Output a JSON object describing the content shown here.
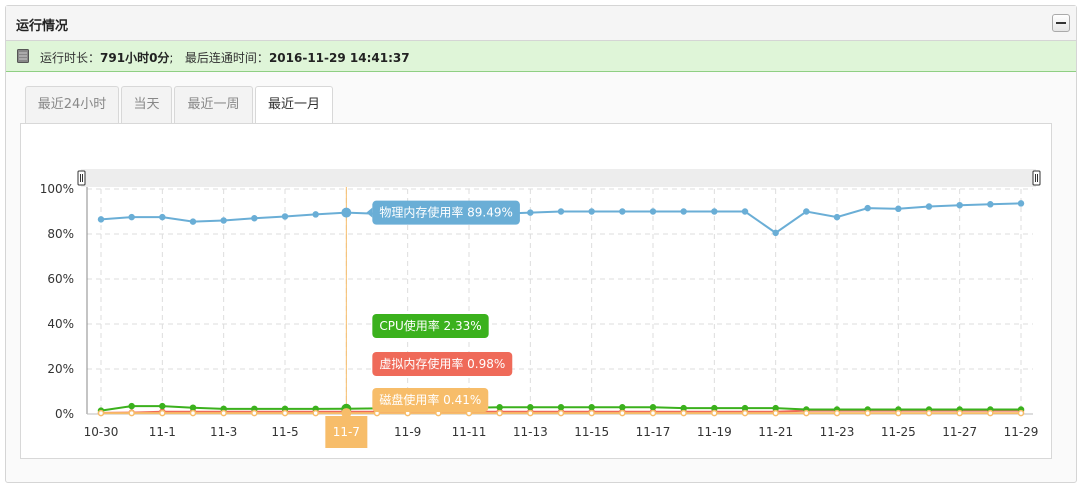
{
  "panel": {
    "title": "运行情况"
  },
  "status": {
    "uptime_label": "运行时长：",
    "uptime_value": "791小时0分",
    "separator": ";",
    "last_connect_label": "最后连通时间：",
    "last_connect_value": "2016-11-29 14:41:37"
  },
  "tabs": [
    {
      "label": "最近24小时",
      "active": false
    },
    {
      "label": "当天",
      "active": false
    },
    {
      "label": "最近一周",
      "active": false
    },
    {
      "label": "最近一月",
      "active": true
    }
  ],
  "colors": {
    "memory": "#6aaed6",
    "cpu": "#3bb11d",
    "virtual": "#ef6a59",
    "disk": "#f7bd6a",
    "crosshair": "#f7bd6a"
  },
  "chart_data": {
    "type": "line",
    "x": [
      "10-30",
      "10-31",
      "11-1",
      "11-2",
      "11-3",
      "11-4",
      "11-5",
      "11-6",
      "11-7",
      "11-8",
      "11-9",
      "11-10",
      "11-11",
      "11-12",
      "11-13",
      "11-14",
      "11-15",
      "11-16",
      "11-17",
      "11-18",
      "11-19",
      "11-20",
      "11-21",
      "11-22",
      "11-23",
      "11-24",
      "11-25",
      "11-26",
      "11-27",
      "11-28",
      "11-29"
    ],
    "x_tick_labels": [
      "10-30",
      "11-1",
      "11-3",
      "11-5",
      "11-7",
      "11-9",
      "11-11",
      "11-13",
      "11-15",
      "11-17",
      "11-19",
      "11-21",
      "11-23",
      "11-25",
      "11-27",
      "11-29"
    ],
    "y_tick_labels": [
      "0%",
      "20%",
      "40%",
      "60%",
      "80%",
      "100%"
    ],
    "ylim": [
      0,
      100
    ],
    "grid": true,
    "series": [
      {
        "name": "物理内存使用率",
        "key": "memory",
        "values": [
          86.5,
          87.5,
          87.5,
          85.5,
          86,
          87,
          87.8,
          88.7,
          89.49,
          89,
          88.8,
          88.8,
          88.8,
          89,
          89.5,
          90,
          90,
          90,
          90,
          90,
          90,
          90,
          80.5,
          90,
          87.5,
          91.5,
          91.2,
          92.2,
          92.8,
          93.2,
          93.6
        ]
      },
      {
        "name": "CPU使用率",
        "key": "cpu",
        "values": [
          1.5,
          3.5,
          3.5,
          2.8,
          2.3,
          2.3,
          2.3,
          2.3,
          2.33,
          2.5,
          2.5,
          2.6,
          2.8,
          3,
          3,
          3,
          3,
          3,
          3,
          2.6,
          2.6,
          2.6,
          2.6,
          2,
          2,
          2,
          2,
          2,
          2,
          2,
          2
        ]
      },
      {
        "name": "虚拟内存使用率",
        "key": "virtual",
        "values": [
          0.5,
          0.6,
          1,
          1,
          1,
          1,
          1,
          1,
          0.98,
          1,
          1,
          1,
          1,
          1,
          1,
          1,
          1,
          1,
          1,
          1,
          1,
          1,
          1,
          1.5,
          1.5,
          1.5,
          1.5,
          1.5,
          1.5,
          1.5,
          1.5
        ]
      },
      {
        "name": "磁盘使用率",
        "key": "disk",
        "values": [
          0.4,
          0.41,
          0.41,
          0.41,
          0.41,
          0.41,
          0.41,
          0.41,
          0.41,
          0.41,
          0.41,
          0.41,
          0.41,
          0.41,
          0.41,
          0.41,
          0.41,
          0.41,
          0.41,
          0.41,
          0.41,
          0.41,
          0.41,
          0.41,
          0.41,
          0.41,
          0.41,
          0.41,
          0.41,
          0.41,
          0.41
        ]
      }
    ],
    "highlight": {
      "x_label": "11-7",
      "tooltips": [
        {
          "series": "memory",
          "text": "物理内存使用率 89.49%"
        },
        {
          "series": "cpu",
          "text": "CPU使用率 2.33%"
        },
        {
          "series": "virtual",
          "text": "虚拟内存使用率 0.98%"
        },
        {
          "series": "disk",
          "text": "磁盘使用率 0.41%"
        }
      ]
    }
  }
}
